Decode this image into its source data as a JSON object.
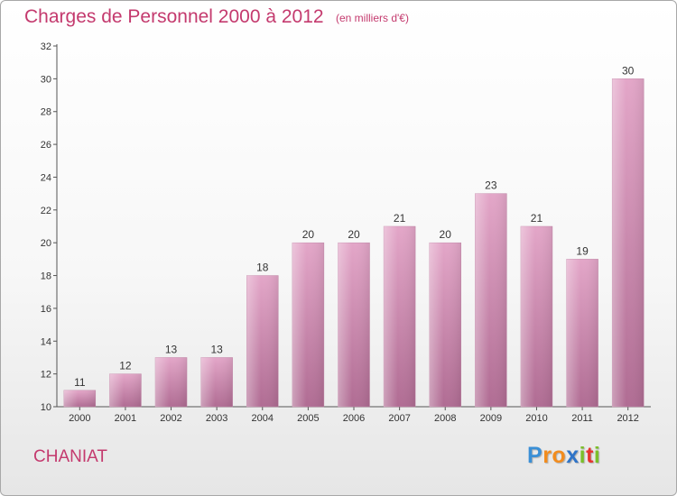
{
  "header": {
    "title": "Charges de Personnel 2000 à 2012",
    "subtitle": "(en milliers d'€)"
  },
  "footer": {
    "town": "CHANIAT",
    "logo": {
      "text": "Proxiti",
      "letter_colors": [
        "#3a8fd6",
        "#f28c1e",
        "#f28c1e",
        "#2f74c8",
        "#7cbf2a",
        "#e8342e",
        "#7cbf2a"
      ]
    }
  },
  "chart_data": {
    "type": "bar",
    "title": "Charges de Personnel 2000 à 2012",
    "subtitle": "(en milliers d'€)",
    "categories": [
      "2000",
      "2001",
      "2002",
      "2003",
      "2004",
      "2005",
      "2006",
      "2007",
      "2008",
      "2009",
      "2010",
      "2011",
      "2012"
    ],
    "values": [
      11,
      12,
      13,
      13,
      18,
      20,
      20,
      21,
      20,
      23,
      21,
      19,
      30
    ],
    "ylim": [
      10,
      32
    ],
    "yticks": [
      10,
      12,
      14,
      16,
      18,
      20,
      22,
      24,
      26,
      28,
      30,
      32
    ],
    "grid": false,
    "bar_color": "#d98bb7",
    "bar_color_dark": "#b06c93"
  }
}
